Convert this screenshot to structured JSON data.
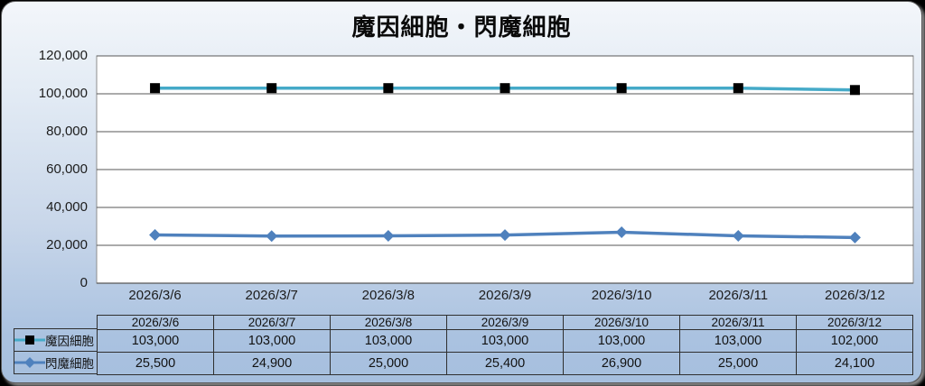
{
  "title": "魔因細胞・閃魔細胞",
  "colors": {
    "page_bg": "#000000",
    "card_bg_top": "#F3F6FA",
    "card_bg_bottom": "#A6BFDE",
    "plot_bg": "#FFFFFF",
    "plot_border": "#8C8C8C",
    "gridline": "#575757",
    "text": "#1C1C1C",
    "table_border": "#2F2F2F",
    "series1_line": "#45AAC8",
    "series1_marker": "#000000",
    "series2_line": "#4F81BD",
    "series2_marker": "#4F81BD"
  },
  "chart_data": {
    "type": "line",
    "title": "魔因細胞・閃魔細胞",
    "categories": [
      "2026/3/6",
      "2026/3/7",
      "2026/3/8",
      "2026/3/9",
      "2026/3/10",
      "2026/3/11",
      "2026/3/12"
    ],
    "series": [
      {
        "name": "魔因細胞",
        "values": [
          103000,
          103000,
          103000,
          103000,
          103000,
          103000,
          102000
        ],
        "color": "#45AAC8",
        "marker": "square",
        "marker_color": "#000000"
      },
      {
        "name": "閃魔細胞",
        "values": [
          25500,
          24900,
          25000,
          25400,
          26900,
          25000,
          24100
        ],
        "color": "#4F81BD",
        "marker": "diamond",
        "marker_color": "#4F81BD"
      }
    ],
    "ylim": [
      0,
      120000
    ],
    "ytick_step": 20000,
    "yticks": [
      "0",
      "20,000",
      "40,000",
      "60,000",
      "80,000",
      "100,000",
      "120,000"
    ],
    "grid": true,
    "legend_position": "table-left"
  },
  "table": {
    "headers": [
      "2026/3/6",
      "2026/3/7",
      "2026/3/8",
      "2026/3/9",
      "2026/3/10",
      "2026/3/11",
      "2026/3/12"
    ],
    "rows": [
      {
        "label": "魔因細胞",
        "values": [
          "103,000",
          "103,000",
          "103,000",
          "103,000",
          "103,000",
          "103,000",
          "102,000"
        ]
      },
      {
        "label": "閃魔細胞",
        "values": [
          "25,500",
          "24,900",
          "25,000",
          "25,400",
          "26,900",
          "25,000",
          "24,100"
        ]
      }
    ]
  }
}
